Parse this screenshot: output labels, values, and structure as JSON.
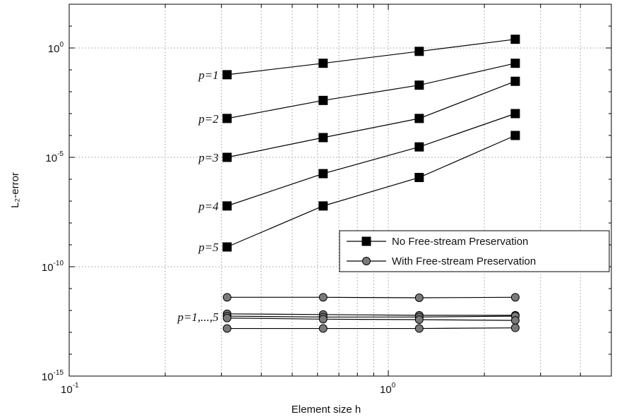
{
  "chart_data": {
    "type": "line",
    "xscale": "log",
    "yscale": "log",
    "xlabel": "Element size h",
    "ylabel": "L₂-error",
    "xlim": [
      0.1,
      5
    ],
    "ylim": [
      1e-15,
      100
    ],
    "grid": true,
    "legend_position": "center-right",
    "x_ticks": [
      {
        "value": 0.1,
        "base": "10",
        "exp": "-1"
      },
      {
        "value": 1,
        "base": "10",
        "exp": "0"
      }
    ],
    "y_ticks": [
      {
        "value": 1e-15,
        "base": "10",
        "exp": "-15"
      },
      {
        "value": 1e-10,
        "base": "10",
        "exp": "-10"
      },
      {
        "value": 1e-05,
        "base": "10",
        "exp": "-5"
      },
      {
        "value": 1,
        "base": "10",
        "exp": "0"
      }
    ],
    "x": [
      0.3125,
      0.625,
      1.25,
      2.5
    ],
    "series": [
      {
        "group": "no_fsp",
        "label": "p=1",
        "values": [
          0.06,
          0.2,
          0.7,
          2.5
        ]
      },
      {
        "group": "no_fsp",
        "label": "p=2",
        "values": [
          0.0006,
          0.004,
          0.02,
          0.2
        ]
      },
      {
        "group": "no_fsp",
        "label": "p=3",
        "values": [
          1e-05,
          8e-05,
          0.0006,
          0.03
        ]
      },
      {
        "group": "no_fsp",
        "label": "p=4",
        "values": [
          6e-08,
          1.8e-06,
          3e-05,
          0.001
        ]
      },
      {
        "group": "no_fsp",
        "label": "p=5",
        "values": [
          8e-10,
          6e-08,
          1.2e-06,
          0.0001
        ]
      },
      {
        "group": "fsp",
        "label": "",
        "values": [
          4e-12,
          4e-12,
          3.8e-12,
          4e-12
        ]
      },
      {
        "group": "fsp",
        "label": "",
        "values": [
          7e-13,
          6.5e-13,
          6e-13,
          6e-13
        ]
      },
      {
        "group": "fsp",
        "label": "",
        "values": [
          5.5e-13,
          5e-13,
          5e-13,
          5.5e-13
        ]
      },
      {
        "group": "fsp",
        "label": "",
        "values": [
          4.5e-13,
          4e-13,
          3.8e-13,
          3.5e-13
        ]
      },
      {
        "group": "fsp",
        "label": "",
        "values": [
          1.5e-13,
          1.5e-13,
          1.5e-13,
          1.6e-13
        ]
      }
    ],
    "fsp_label": "p=1,...,5",
    "legend": [
      {
        "group": "no_fsp",
        "label": "No Free-stream Preservation",
        "marker": "square",
        "color": "#000000"
      },
      {
        "group": "fsp",
        "label": "With Free-stream Preservation",
        "marker": "circle",
        "color": "#7a7a7a"
      }
    ]
  }
}
